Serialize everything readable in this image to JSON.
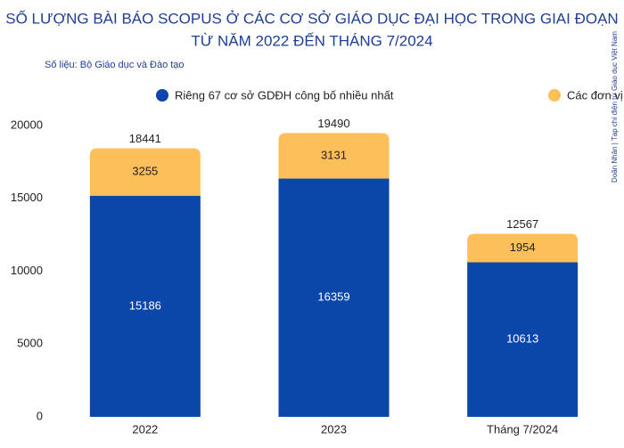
{
  "chart_data": {
    "type": "stacked_bar",
    "title": [
      "SỐ LƯỢNG BÀI BÁO SCOPUS Ở CÁC CƠ SỞ GIÁO DỤC ĐẠI HỌC TRONG GIAI ĐOẠN",
      "TỪ NĂM 2022 ĐẾN THÁNG 7/2024"
    ],
    "source": "Số liệu: Bộ Giáo dục và Đào tạo",
    "credit": "Doãn Nhân | Tạp chí điện tử Giáo dục Việt Nam",
    "categories": [
      "2022",
      "2023",
      "Tháng 7/2024"
    ],
    "series": [
      {
        "name": "Riêng 67 cơ sở GDĐH công bố nhiều nhất",
        "color": "#0a47a9",
        "values": [
          15186,
          16359,
          10613
        ]
      },
      {
        "name": "Các đơn vị còn lại",
        "color": "#fdbf5a",
        "values": [
          3255,
          3131,
          1954
        ]
      }
    ],
    "totals": [
      18441,
      19490,
      12567
    ],
    "ylim": [
      0,
      20000
    ],
    "yticks": [
      0,
      5000,
      10000,
      15000,
      20000
    ],
    "grid": false
  }
}
